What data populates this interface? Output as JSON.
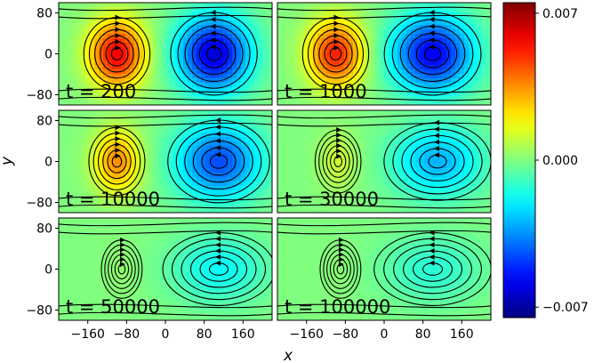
{
  "chart_data": {
    "type": "heatmap",
    "layout": "3x2 grid of panels with shared axes and one colorbar",
    "xlabel": "x",
    "ylabel": "y",
    "xlim": [
      -220,
      220
    ],
    "ylim": [
      -100,
      100
    ],
    "x_ticks": [
      -160,
      -80,
      0,
      80,
      160
    ],
    "y_ticks": [
      80,
      0,
      -80
    ],
    "x_tick_labels": [
      "−160",
      "−80",
      "0",
      "80",
      "160"
    ],
    "y_tick_labels": [
      "80",
      "0",
      "−80"
    ],
    "colorbar": {
      "colormap": "jet",
      "range": [
        -0.0075,
        0.0075
      ],
      "ticks": [
        0.007,
        0.0,
        -0.007
      ],
      "tick_labels": [
        "0.007",
        "0.000",
        "−0.007"
      ]
    },
    "overlay": "streamlines with arrowheads",
    "panels": [
      {
        "label": "t = 200",
        "vortices": [
          {
            "x": -100,
            "y": 0,
            "peak": 0.0058,
            "rx": 65,
            "ry": 75
          },
          {
            "x": 100,
            "y": 0,
            "peak": -0.0062,
            "rx": 85,
            "ry": 85
          }
        ]
      },
      {
        "label": "t = 1000",
        "vortices": [
          {
            "x": -100,
            "y": 0,
            "peak": 0.0052,
            "rx": 65,
            "ry": 75
          },
          {
            "x": 100,
            "y": 0,
            "peak": -0.0058,
            "rx": 95,
            "ry": 85
          }
        ]
      },
      {
        "label": "t = 10000",
        "vortices": [
          {
            "x": -100,
            "y": 0,
            "peak": 0.0036,
            "rx": 55,
            "ry": 70
          },
          {
            "x": 110,
            "y": 0,
            "peak": -0.0045,
            "rx": 100,
            "ry": 85
          }
        ]
      },
      {
        "label": "t = 30000",
        "vortices": [
          {
            "x": -95,
            "y": 0,
            "peak": 0.0012,
            "rx": 45,
            "ry": 65
          },
          {
            "x": 110,
            "y": 0,
            "peak": -0.003,
            "rx": 105,
            "ry": 80
          }
        ]
      },
      {
        "label": "t = 50000",
        "vortices": [
          {
            "x": -90,
            "y": 0,
            "peak": 0.0003,
            "rx": 40,
            "ry": 60
          },
          {
            "x": 110,
            "y": 0,
            "peak": -0.0018,
            "rx": 110,
            "ry": 75
          }
        ]
      },
      {
        "label": "t = 100000",
        "vortices": [
          {
            "x": -90,
            "y": 0,
            "peak": 0.0002,
            "rx": 40,
            "ry": 60
          },
          {
            "x": 100,
            "y": 0,
            "peak": -0.0013,
            "rx": 115,
            "ry": 75
          }
        ]
      }
    ]
  }
}
